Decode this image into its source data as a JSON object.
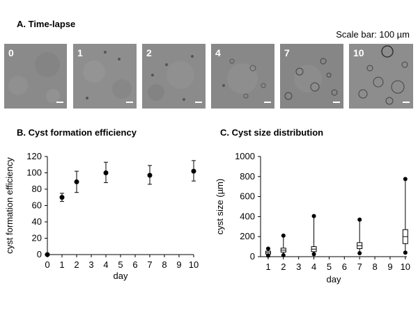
{
  "panel_a": {
    "title": "A. Time-lapse",
    "scale_bar": "Scale bar: 100 µm",
    "frames": [
      "0",
      "1",
      "2",
      "4",
      "7",
      "10"
    ]
  },
  "panel_b": {
    "title": "B. Cyst formation efficiency"
  },
  "panel_c": {
    "title": "C. Cyst size distribution"
  },
  "chart_data": [
    {
      "type": "scatter",
      "title": "B. Cyst formation efficiency",
      "xlabel": "day",
      "ylabel": "cyst formation efficiency",
      "xlim": [
        0,
        10
      ],
      "ylim": [
        0,
        120
      ],
      "xticks": [
        0,
        1,
        2,
        3,
        4,
        5,
        6,
        7,
        8,
        9,
        10
      ],
      "yticks": [
        0,
        20,
        40,
        60,
        80,
        100,
        120
      ],
      "grid": false,
      "series": [
        {
          "x": [
            0,
            1,
            2,
            4,
            7,
            10
          ],
          "y": [
            0,
            70,
            89,
            100,
            97,
            102
          ],
          "err_low": [
            0,
            65,
            76,
            88,
            86,
            90
          ],
          "err_high": [
            0,
            75,
            102,
            113,
            109,
            115
          ]
        }
      ]
    },
    {
      "type": "box",
      "title": "C. Cyst size distribution",
      "xlabel": "day",
      "ylabel": "cyst size (µm)",
      "xlim": [
        1,
        10
      ],
      "ylim": [
        0,
        1000
      ],
      "xticks": [
        1,
        2,
        3,
        4,
        5,
        6,
        7,
        8,
        9,
        10
      ],
      "yticks": [
        0,
        200,
        400,
        600,
        800,
        1000
      ],
      "grid": false,
      "boxes": [
        {
          "x": 1,
          "min": 10,
          "q1": 25,
          "median": 40,
          "q3": 55,
          "max": 80
        },
        {
          "x": 2,
          "min": 15,
          "q1": 45,
          "median": 65,
          "q3": 85,
          "max": 210
        },
        {
          "x": 4,
          "min": 25,
          "q1": 50,
          "median": 75,
          "q3": 100,
          "max": 405
        },
        {
          "x": 7,
          "min": 35,
          "q1": 80,
          "median": 110,
          "q3": 140,
          "max": 370
        },
        {
          "x": 10,
          "min": 40,
          "q1": 130,
          "median": 200,
          "q3": 270,
          "max": 775
        }
      ]
    }
  ]
}
